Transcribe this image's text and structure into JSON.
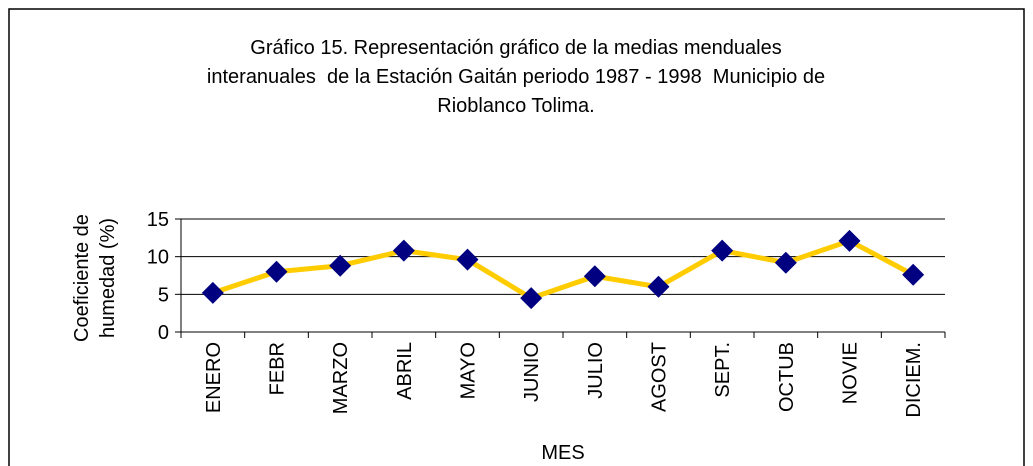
{
  "chart_data": {
    "type": "line",
    "title": [
      "Gráfico 15. Representación gráfico de la medias menduales",
      "interanuales  de la Estación Gaitán periodo 1987 - 1998  Municipio de",
      "Rioblanco Tolima."
    ],
    "y_label": [
      "Coeficiente de",
      "humedad (%)"
    ],
    "x_label": "MES",
    "categories": [
      "ENERO",
      "FEBR",
      "MARZO",
      "ABRIL",
      "MAYO",
      "JUNIO",
      "JULIO",
      "AGOST",
      "SEPT.",
      "OCTUB",
      "NOVIE",
      "DICIEM."
    ],
    "values": [
      5.2,
      8.0,
      8.8,
      10.8,
      9.6,
      4.5,
      7.4,
      6.0,
      10.8,
      9.2,
      12.1,
      7.6
    ],
    "color": "#ffcc00",
    "marker_color": "#000080",
    "ylim": [
      0,
      15
    ],
    "yticks": [
      0,
      5,
      10,
      15
    ],
    "grid": true
  }
}
